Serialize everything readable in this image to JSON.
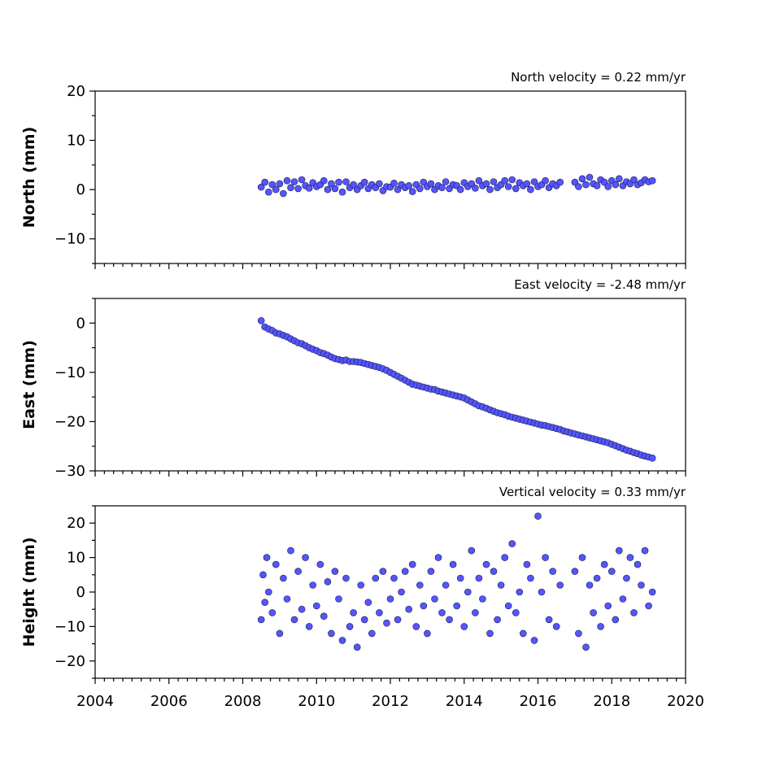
{
  "chart_data": [
    {
      "type": "scatter",
      "title": "North velocity = 0.22 mm/yr",
      "xlabel": "",
      "ylabel": "North (mm)",
      "xlim": [
        2004,
        2020
      ],
      "ylim": [
        -15,
        20
      ],
      "x_ticks": [
        2004,
        2006,
        2008,
        2010,
        2012,
        2014,
        2016,
        2018,
        2020
      ],
      "y_ticks": [
        -10,
        0,
        10,
        20
      ],
      "y_tick_labels": [
        "−10",
        "0",
        "10",
        "20"
      ],
      "show_x_tick_labels": false,
      "grid": false,
      "marker_color": "#5555ff",
      "series": [
        {
          "x": [
            2008.5,
            2008.6,
            2008.7,
            2008.8,
            2008.9,
            2009.0,
            2009.1,
            2009.2,
            2009.3,
            2009.4,
            2009.5,
            2009.6,
            2009.7,
            2009.8,
            2009.9,
            2010.0,
            2010.1,
            2010.2,
            2010.3,
            2010.4,
            2010.5,
            2010.6,
            2010.7,
            2010.8,
            2010.9,
            2011.0,
            2011.1,
            2011.2,
            2011.3,
            2011.4,
            2011.5,
            2011.6,
            2011.7,
            2011.8,
            2011.9,
            2012.0,
            2012.1,
            2012.2,
            2012.3,
            2012.4,
            2012.5,
            2012.6,
            2012.7,
            2012.8,
            2012.9,
            2013.0,
            2013.1,
            2013.2,
            2013.3,
            2013.4,
            2013.5,
            2013.6,
            2013.7,
            2013.8,
            2013.9,
            2014.0,
            2014.1,
            2014.2,
            2014.3,
            2014.4,
            2014.5,
            2014.6,
            2014.7,
            2014.8,
            2014.9,
            2015.0,
            2015.1,
            2015.2,
            2015.3,
            2015.4,
            2015.5,
            2015.6,
            2015.7,
            2015.8,
            2015.9,
            2016.0,
            2016.1,
            2016.2,
            2016.3,
            2016.4,
            2016.5,
            2016.6,
            2017.0,
            2017.1,
            2017.2,
            2017.3,
            2017.4,
            2017.5,
            2017.6,
            2017.7,
            2017.8,
            2017.9,
            2018.0,
            2018.1,
            2018.2,
            2018.3,
            2018.4,
            2018.5,
            2018.6,
            2018.7,
            2018.8,
            2018.9,
            2019.0,
            2019.1
          ],
          "y": [
            0.5,
            1.5,
            -0.5,
            1.0,
            0.0,
            1.2,
            -0.8,
            1.8,
            0.4,
            1.6,
            0.2,
            2.0,
            0.8,
            0.3,
            1.4,
            0.6,
            1.0,
            1.8,
            0.0,
            1.2,
            0.2,
            1.5,
            -0.5,
            1.6,
            0.4,
            1.0,
            0.0,
            0.8,
            1.5,
            0.2,
            1.0,
            0.4,
            1.2,
            -0.2,
            0.6,
            0.5,
            1.3,
            0.0,
            1.0,
            0.4,
            0.8,
            -0.4,
            1.0,
            0.2,
            1.5,
            0.6,
            1.2,
            0.0,
            0.8,
            0.4,
            1.6,
            0.2,
            1.0,
            0.8,
            0.0,
            1.4,
            0.6,
            1.2,
            0.3,
            1.8,
            0.8,
            1.2,
            0.0,
            1.6,
            0.4,
            1.0,
            1.8,
            0.6,
            2.0,
            0.2,
            1.4,
            0.8,
            1.2,
            0.0,
            1.6,
            0.6,
            1.0,
            1.8,
            0.4,
            1.2,
            0.8,
            1.5,
            1.5,
            0.6,
            2.2,
            1.0,
            2.5,
            1.2,
            0.8,
            2.0,
            1.5,
            0.6,
            1.8,
            1.0,
            2.2,
            0.8,
            1.6,
            1.2,
            2.0,
            1.0,
            1.4,
            2.0,
            1.6,
            1.8
          ]
        }
      ]
    },
    {
      "type": "scatter",
      "title": "East velocity = -2.48 mm/yr",
      "xlabel": "",
      "ylabel": "East (mm)",
      "xlim": [
        2004,
        2020
      ],
      "ylim": [
        -30,
        5
      ],
      "x_ticks": [
        2004,
        2006,
        2008,
        2010,
        2012,
        2014,
        2016,
        2018,
        2020
      ],
      "y_ticks": [
        -30,
        -20,
        -10,
        0
      ],
      "y_tick_labels": [
        "−30",
        "−20",
        "−10",
        "0"
      ],
      "show_x_tick_labels": false,
      "grid": false,
      "marker_color": "#5555ff",
      "series": [
        {
          "x": [
            2008.5,
            2008.6,
            2008.7,
            2008.8,
            2008.9,
            2009.0,
            2009.1,
            2009.2,
            2009.3,
            2009.4,
            2009.5,
            2009.6,
            2009.7,
            2009.8,
            2009.9,
            2010.0,
            2010.1,
            2010.2,
            2010.3,
            2010.4,
            2010.5,
            2010.6,
            2010.7,
            2010.8,
            2010.9,
            2011.0,
            2011.1,
            2011.2,
            2011.3,
            2011.4,
            2011.5,
            2011.6,
            2011.7,
            2011.8,
            2011.9,
            2012.0,
            2012.1,
            2012.2,
            2012.3,
            2012.4,
            2012.5,
            2012.6,
            2012.7,
            2012.8,
            2012.9,
            2013.0,
            2013.1,
            2013.2,
            2013.3,
            2013.4,
            2013.5,
            2013.6,
            2013.7,
            2013.8,
            2013.9,
            2014.0,
            2014.1,
            2014.2,
            2014.3,
            2014.4,
            2014.5,
            2014.6,
            2014.7,
            2014.8,
            2014.9,
            2015.0,
            2015.1,
            2015.2,
            2015.3,
            2015.4,
            2015.5,
            2015.6,
            2015.7,
            2015.8,
            2015.9,
            2016.0,
            2016.1,
            2016.2,
            2016.3,
            2016.4,
            2016.5,
            2016.6,
            2016.7,
            2016.8,
            2016.9,
            2017.0,
            2017.1,
            2017.2,
            2017.3,
            2017.4,
            2017.5,
            2017.6,
            2017.7,
            2017.8,
            2017.9,
            2018.0,
            2018.1,
            2018.2,
            2018.3,
            2018.4,
            2018.5,
            2018.6,
            2018.7,
            2018.8,
            2018.9,
            2019.0,
            2019.1
          ],
          "y": [
            0.5,
            -0.8,
            -1.2,
            -1.5,
            -2.0,
            -2.2,
            -2.5,
            -2.8,
            -3.2,
            -3.6,
            -4.0,
            -4.2,
            -4.6,
            -5.0,
            -5.3,
            -5.6,
            -6.0,
            -6.2,
            -6.5,
            -6.9,
            -7.2,
            -7.4,
            -7.6,
            -7.5,
            -7.8,
            -7.8,
            -7.9,
            -8.0,
            -8.2,
            -8.4,
            -8.6,
            -8.8,
            -9.0,
            -9.3,
            -9.6,
            -10.0,
            -10.4,
            -10.8,
            -11.2,
            -11.6,
            -12.0,
            -12.4,
            -12.6,
            -12.8,
            -13.0,
            -13.2,
            -13.4,
            -13.5,
            -13.8,
            -14.0,
            -14.2,
            -14.4,
            -14.6,
            -14.8,
            -15.0,
            -15.2,
            -15.6,
            -16.0,
            -16.4,
            -16.8,
            -17.0,
            -17.3,
            -17.6,
            -17.9,
            -18.2,
            -18.4,
            -18.6,
            -18.9,
            -19.1,
            -19.3,
            -19.5,
            -19.7,
            -19.9,
            -20.1,
            -20.3,
            -20.5,
            -20.7,
            -20.8,
            -21.0,
            -21.2,
            -21.4,
            -21.6,
            -21.9,
            -22.1,
            -22.3,
            -22.5,
            -22.7,
            -22.9,
            -23.1,
            -23.3,
            -23.5,
            -23.7,
            -23.9,
            -24.1,
            -24.3,
            -24.6,
            -24.9,
            -25.2,
            -25.5,
            -25.8,
            -26.0,
            -26.3,
            -26.5,
            -26.8,
            -27.0,
            -27.2,
            -27.4
          ]
        }
      ]
    },
    {
      "type": "scatter",
      "title": "Vertical velocity = 0.33 mm/yr",
      "xlabel": "",
      "ylabel": "Height (mm)",
      "xlim": [
        2004,
        2020
      ],
      "ylim": [
        -25,
        25
      ],
      "x_ticks": [
        2004,
        2006,
        2008,
        2010,
        2012,
        2014,
        2016,
        2018,
        2020
      ],
      "x_tick_labels": [
        "2004",
        "2006",
        "2008",
        "2010",
        "2012",
        "2014",
        "2016",
        "2018",
        "2020"
      ],
      "y_ticks": [
        -20,
        -10,
        0,
        10,
        20
      ],
      "y_tick_labels": [
        "−20",
        "−10",
        "0",
        "10",
        "20"
      ],
      "show_x_tick_labels": true,
      "grid": false,
      "marker_color": "#5555ff",
      "series": [
        {
          "x": [
            2008.5,
            2008.55,
            2008.6,
            2008.65,
            2008.7,
            2008.8,
            2008.9,
            2009.0,
            2009.1,
            2009.2,
            2009.3,
            2009.4,
            2009.5,
            2009.6,
            2009.7,
            2009.8,
            2009.9,
            2010.0,
            2010.1,
            2010.2,
            2010.3,
            2010.4,
            2010.5,
            2010.6,
            2010.7,
            2010.8,
            2010.9,
            2011.0,
            2011.1,
            2011.2,
            2011.3,
            2011.4,
            2011.5,
            2011.6,
            2011.7,
            2011.8,
            2011.9,
            2012.0,
            2012.1,
            2012.2,
            2012.3,
            2012.4,
            2012.5,
            2012.6,
            2012.7,
            2012.8,
            2012.9,
            2013.0,
            2013.1,
            2013.2,
            2013.3,
            2013.4,
            2013.5,
            2013.6,
            2013.7,
            2013.8,
            2013.9,
            2014.0,
            2014.1,
            2014.2,
            2014.3,
            2014.4,
            2014.5,
            2014.6,
            2014.7,
            2014.8,
            2014.9,
            2015.0,
            2015.1,
            2015.2,
            2015.3,
            2015.4,
            2015.5,
            2015.6,
            2015.7,
            2015.8,
            2015.9,
            2016.0,
            2016.1,
            2016.2,
            2016.3,
            2016.4,
            2016.5,
            2016.6,
            2017.0,
            2017.1,
            2017.2,
            2017.3,
            2017.4,
            2017.5,
            2017.6,
            2017.7,
            2017.8,
            2017.9,
            2018.0,
            2018.1,
            2018.2,
            2018.3,
            2018.4,
            2018.5,
            2018.6,
            2018.7,
            2018.8,
            2018.9,
            2019.0,
            2019.1
          ],
          "y": [
            -8,
            5,
            -3,
            10,
            0,
            -6,
            8,
            -12,
            4,
            -2,
            12,
            -8,
            6,
            -5,
            10,
            -10,
            2,
            -4,
            8,
            -7,
            3,
            -12,
            6,
            -2,
            -14,
            4,
            -10,
            -6,
            -16,
            2,
            -8,
            -3,
            -12,
            4,
            -6,
            6,
            -9,
            -2,
            4,
            -8,
            0,
            6,
            -5,
            8,
            -10,
            2,
            -4,
            -12,
            6,
            -2,
            10,
            -6,
            2,
            -8,
            8,
            -4,
            4,
            -10,
            0,
            12,
            -6,
            4,
            -2,
            8,
            -12,
            6,
            -8,
            2,
            10,
            -4,
            14,
            -6,
            0,
            -12,
            8,
            4,
            -14,
            22,
            0,
            10,
            -8,
            6,
            -10,
            2,
            6,
            -12,
            10,
            -16,
            2,
            -6,
            4,
            -10,
            8,
            -4,
            6,
            -8,
            12,
            -2,
            4,
            10,
            -6,
            8,
            2,
            12,
            -4,
            0
          ]
        }
      ]
    }
  ]
}
